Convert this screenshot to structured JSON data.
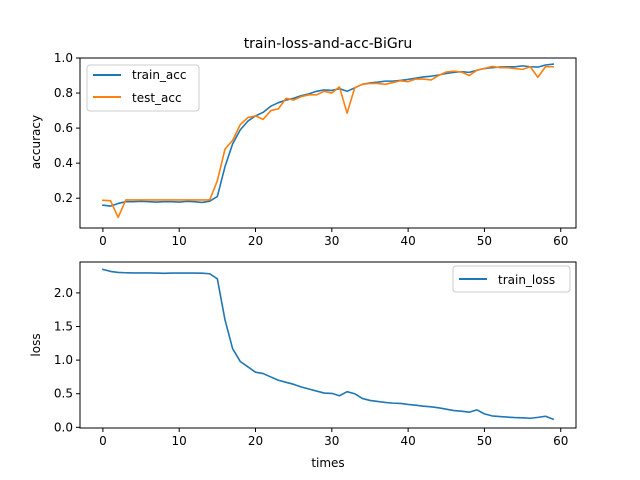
{
  "chart_data": [
    {
      "type": "line",
      "title": "train-loss-and-acc-BiGru",
      "xlabel": "",
      "ylabel": "accuracy",
      "xlim": [
        -3,
        62
      ],
      "ylim": [
        0.03,
        1.0
      ],
      "x_ticks": [
        0,
        10,
        20,
        30,
        40,
        50,
        60
      ],
      "y_ticks": [
        0.2,
        0.4,
        0.6,
        0.8,
        1.0
      ],
      "y_tick_labels": [
        "0.2",
        "0.4",
        "0.6",
        "0.8",
        "1.0"
      ],
      "grid": false,
      "legend_position": "upper-left",
      "series": [
        {
          "name": "train_acc",
          "color": "#1f77b4",
          "x": [
            0,
            1,
            2,
            3,
            4,
            5,
            6,
            7,
            8,
            9,
            10,
            11,
            12,
            13,
            14,
            15,
            16,
            17,
            18,
            19,
            20,
            21,
            22,
            23,
            24,
            25,
            26,
            27,
            28,
            29,
            30,
            31,
            32,
            33,
            34,
            35,
            36,
            37,
            38,
            39,
            40,
            41,
            42,
            43,
            44,
            45,
            46,
            47,
            48,
            49,
            50,
            51,
            52,
            53,
            54,
            55,
            56,
            57,
            58,
            59
          ],
          "values": [
            0.16,
            0.155,
            0.17,
            0.18,
            0.18,
            0.182,
            0.18,
            0.178,
            0.18,
            0.18,
            0.178,
            0.182,
            0.18,
            0.176,
            0.183,
            0.21,
            0.38,
            0.51,
            0.59,
            0.64,
            0.67,
            0.69,
            0.725,
            0.745,
            0.76,
            0.77,
            0.785,
            0.795,
            0.81,
            0.818,
            0.815,
            0.825,
            0.81,
            0.83,
            0.85,
            0.858,
            0.862,
            0.868,
            0.868,
            0.872,
            0.878,
            0.885,
            0.892,
            0.896,
            0.903,
            0.912,
            0.918,
            0.922,
            0.918,
            0.93,
            0.94,
            0.945,
            0.948,
            0.95,
            0.95,
            0.955,
            0.95,
            0.948,
            0.96,
            0.965
          ]
        },
        {
          "name": "test_acc",
          "color": "#ff7f0e",
          "x": [
            0,
            1,
            2,
            3,
            4,
            5,
            6,
            7,
            8,
            9,
            10,
            11,
            12,
            13,
            14,
            15,
            16,
            17,
            18,
            19,
            20,
            21,
            22,
            23,
            24,
            25,
            26,
            27,
            28,
            29,
            30,
            31,
            32,
            33,
            34,
            35,
            36,
            37,
            38,
            39,
            40,
            41,
            42,
            43,
            44,
            45,
            46,
            47,
            48,
            49,
            50,
            51,
            52,
            53,
            54,
            55,
            56,
            57,
            58,
            59
          ],
          "values": [
            0.188,
            0.186,
            0.09,
            0.19,
            0.19,
            0.19,
            0.19,
            0.19,
            0.19,
            0.19,
            0.19,
            0.19,
            0.19,
            0.19,
            0.19,
            0.3,
            0.48,
            0.53,
            0.62,
            0.66,
            0.67,
            0.65,
            0.7,
            0.71,
            0.77,
            0.76,
            0.78,
            0.79,
            0.79,
            0.81,
            0.8,
            0.835,
            0.685,
            0.83,
            0.85,
            0.855,
            0.855,
            0.85,
            0.86,
            0.87,
            0.865,
            0.88,
            0.88,
            0.875,
            0.9,
            0.92,
            0.925,
            0.92,
            0.9,
            0.93,
            0.94,
            0.952,
            0.945,
            0.945,
            0.94,
            0.935,
            0.95,
            0.89,
            0.95,
            0.95
          ]
        }
      ]
    },
    {
      "type": "line",
      "title": "",
      "xlabel": "times",
      "ylabel": "loss",
      "xlim": [
        -3,
        62
      ],
      "ylim": [
        -0.01,
        2.46
      ],
      "x_ticks": [
        0,
        10,
        20,
        30,
        40,
        50,
        60
      ],
      "y_ticks": [
        0.0,
        0.5,
        1.0,
        1.5,
        2.0
      ],
      "y_tick_labels": [
        "0.0",
        "0.5",
        "1.0",
        "1.5",
        "2.0"
      ],
      "grid": false,
      "legend_position": "upper-right",
      "series": [
        {
          "name": "train_loss",
          "color": "#1f77b4",
          "x": [
            0,
            1,
            2,
            3,
            4,
            5,
            6,
            7,
            8,
            9,
            10,
            11,
            12,
            13,
            14,
            15,
            16,
            17,
            18,
            19,
            20,
            21,
            22,
            23,
            24,
            25,
            26,
            27,
            28,
            29,
            30,
            31,
            32,
            33,
            34,
            35,
            36,
            37,
            38,
            39,
            40,
            41,
            42,
            43,
            44,
            45,
            46,
            47,
            48,
            49,
            50,
            51,
            52,
            53,
            54,
            55,
            56,
            57,
            58,
            59
          ],
          "values": [
            2.35,
            2.32,
            2.305,
            2.3,
            2.298,
            2.298,
            2.297,
            2.295,
            2.292,
            2.296,
            2.295,
            2.295,
            2.295,
            2.293,
            2.285,
            2.21,
            1.6,
            1.17,
            0.98,
            0.9,
            0.82,
            0.8,
            0.75,
            0.7,
            0.67,
            0.64,
            0.6,
            0.57,
            0.54,
            0.51,
            0.505,
            0.47,
            0.53,
            0.5,
            0.43,
            0.4,
            0.385,
            0.37,
            0.36,
            0.355,
            0.34,
            0.33,
            0.315,
            0.305,
            0.29,
            0.27,
            0.25,
            0.24,
            0.225,
            0.26,
            0.2,
            0.17,
            0.16,
            0.152,
            0.145,
            0.142,
            0.135,
            0.148,
            0.165,
            0.12
          ]
        }
      ]
    }
  ]
}
